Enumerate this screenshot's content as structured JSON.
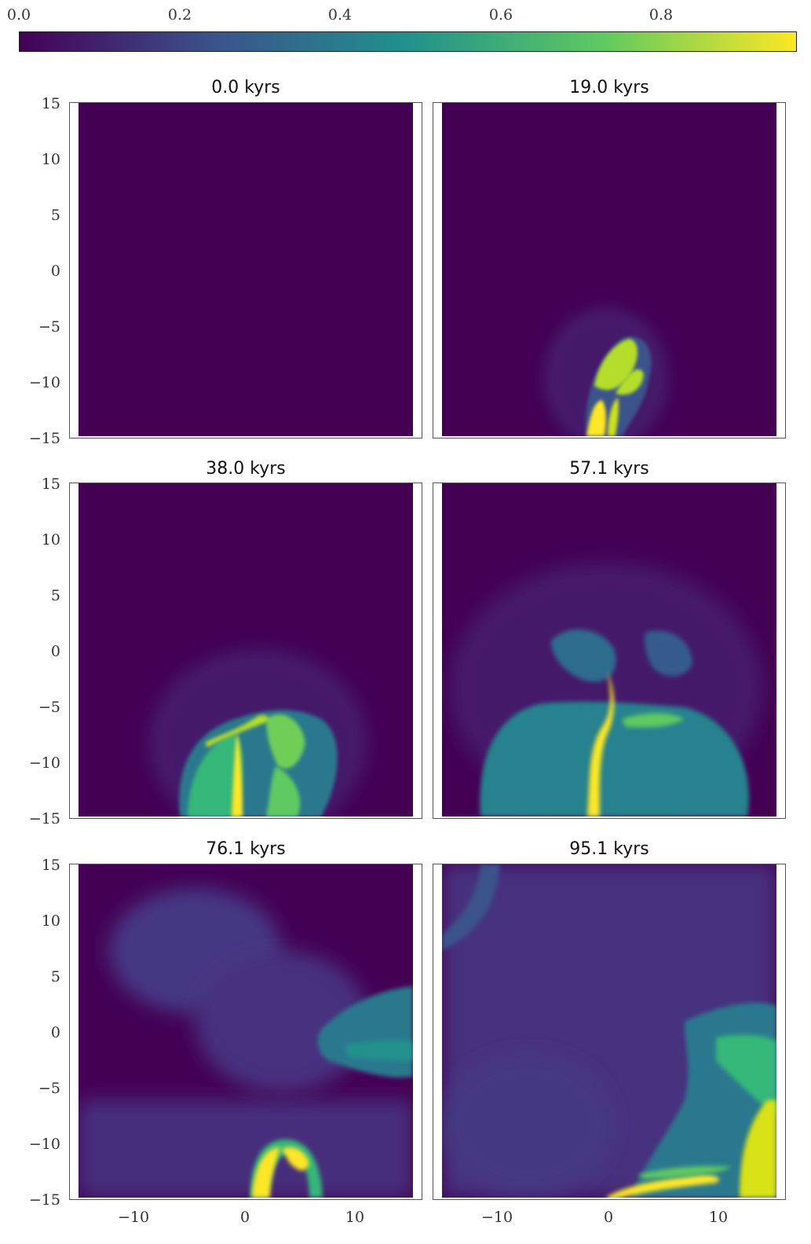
{
  "chart_data": {
    "type": "heatmap",
    "colormap": "viridis",
    "colorbar": {
      "range": [
        0.0,
        1.0
      ],
      "ticks": [
        "0.0",
        "0.2",
        "0.4",
        "0.6",
        "0.8"
      ],
      "colors": [
        "#440154",
        "#3b528b",
        "#21918c",
        "#5ec962",
        "#fde725"
      ]
    },
    "xlim": [
      -15,
      15
    ],
    "ylim": [
      -15,
      15
    ],
    "x_ticks": [
      "−10",
      "0",
      "10"
    ],
    "y_ticks": [
      "15",
      "10",
      "5",
      "0",
      "−5",
      "−10",
      "−15"
    ],
    "panels": [
      {
        "title": "0.0 kyrs"
      },
      {
        "title": "19.0 kyrs"
      },
      {
        "title": "38.0 kyrs"
      },
      {
        "title": "57.1 kyrs"
      },
      {
        "title": "76.1 kyrs"
      },
      {
        "title": "95.1 kyrs"
      }
    ]
  }
}
